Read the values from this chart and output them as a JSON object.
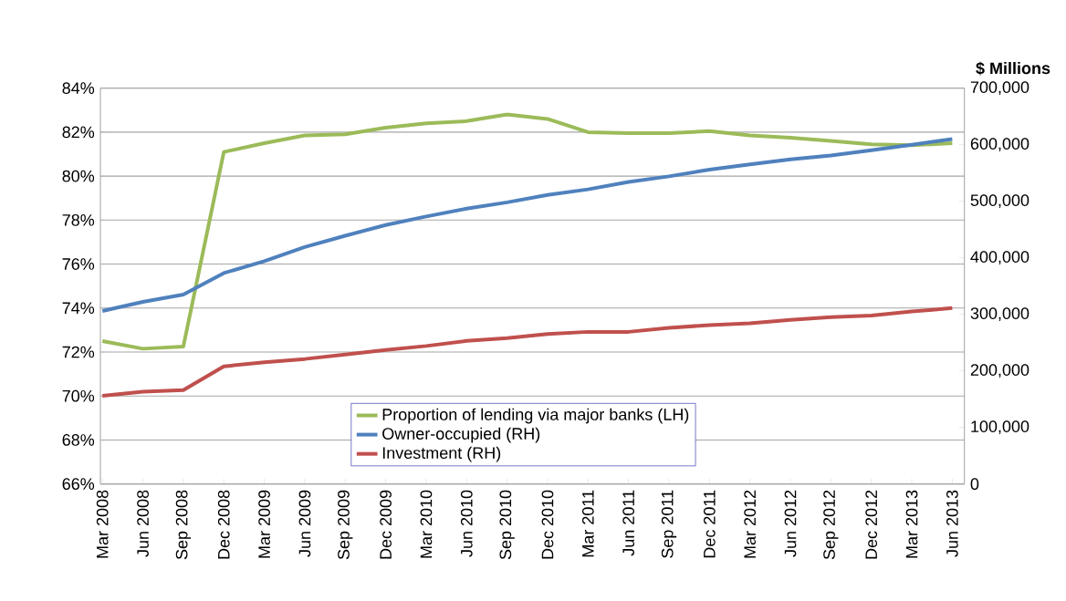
{
  "chart_data": {
    "type": "line",
    "categories": [
      "Mar 2008",
      "Jun 2008",
      "Sep 2008",
      "Dec 2008",
      "Mar 2009",
      "Jun 2009",
      "Sep 2009",
      "Dec 2009",
      "Mar 2010",
      "Jun 2010",
      "Sep 2010",
      "Dec 2010",
      "Mar 2011",
      "Jun 2011",
      "Sep 2011",
      "Dec 2011",
      "Mar 2012",
      "Jun 2012",
      "Sep 2012",
      "Dec 2012",
      "Mar 2013",
      "Jun 2013"
    ],
    "series": [
      {
        "name": "Proportion of lending via major banks (LH)",
        "color": "#9bbb59",
        "values": [
          72.5,
          72.15,
          72.25,
          81.1,
          81.5,
          81.85,
          81.9,
          82.2,
          82.4,
          82.5,
          82.8,
          82.6,
          82.0,
          81.95,
          81.95,
          82.05,
          81.85,
          81.75,
          81.6,
          81.45,
          81.4,
          81.5
        ]
      },
      {
        "name": "Owner-occupied (RH)",
        "color": "#4f81bd",
        "axis": "y2",
        "values": [
          306000,
          322000,
          335000,
          373000,
          394000,
          419000,
          439000,
          458000,
          473000,
          487000,
          498000,
          511000,
          521000,
          534000,
          544000,
          556000,
          565000,
          574000,
          581000,
          590000,
          600000,
          610000
        ]
      },
      {
        "name": "Investment (RH)",
        "color": "#c0504d",
        "axis": "y2",
        "values": [
          156000,
          163000,
          166000,
          208000,
          215000,
          221000,
          229000,
          237000,
          244000,
          253000,
          258000,
          265000,
          269000,
          269000,
          276000,
          281000,
          284000,
          290000,
          295000,
          298000,
          305000,
          311000
        ]
      }
    ],
    "ylim": [
      66,
      84
    ],
    "yticks": [
      {
        "value": 66,
        "label": "66%"
      },
      {
        "value": 68,
        "label": "68%"
      },
      {
        "value": 70,
        "label": "70%"
      },
      {
        "value": 72,
        "label": "72%"
      },
      {
        "value": 74,
        "label": "74%"
      },
      {
        "value": 76,
        "label": "76%"
      },
      {
        "value": 78,
        "label": "78%"
      },
      {
        "value": 80,
        "label": "80%"
      },
      {
        "value": 82,
        "label": "82%"
      },
      {
        "value": 84,
        "label": "84%"
      }
    ],
    "y2label": "$ Millions",
    "y2lim": [
      0,
      700000
    ],
    "y2ticks": [
      0,
      {
        "value": 100000,
        "label": "100,000"
      },
      {
        "value": 200000,
        "label": "200,000"
      },
      {
        "value": 300000,
        "label": "300,000"
      },
      {
        "value": 400000,
        "label": "400,000"
      },
      {
        "value": 500000,
        "label": "500,000"
      },
      {
        "value": 600000,
        "label": "600,000"
      },
      {
        "value": 700000,
        "label": "700,000"
      }
    ],
    "grid": "y",
    "legend": "bottom"
  }
}
